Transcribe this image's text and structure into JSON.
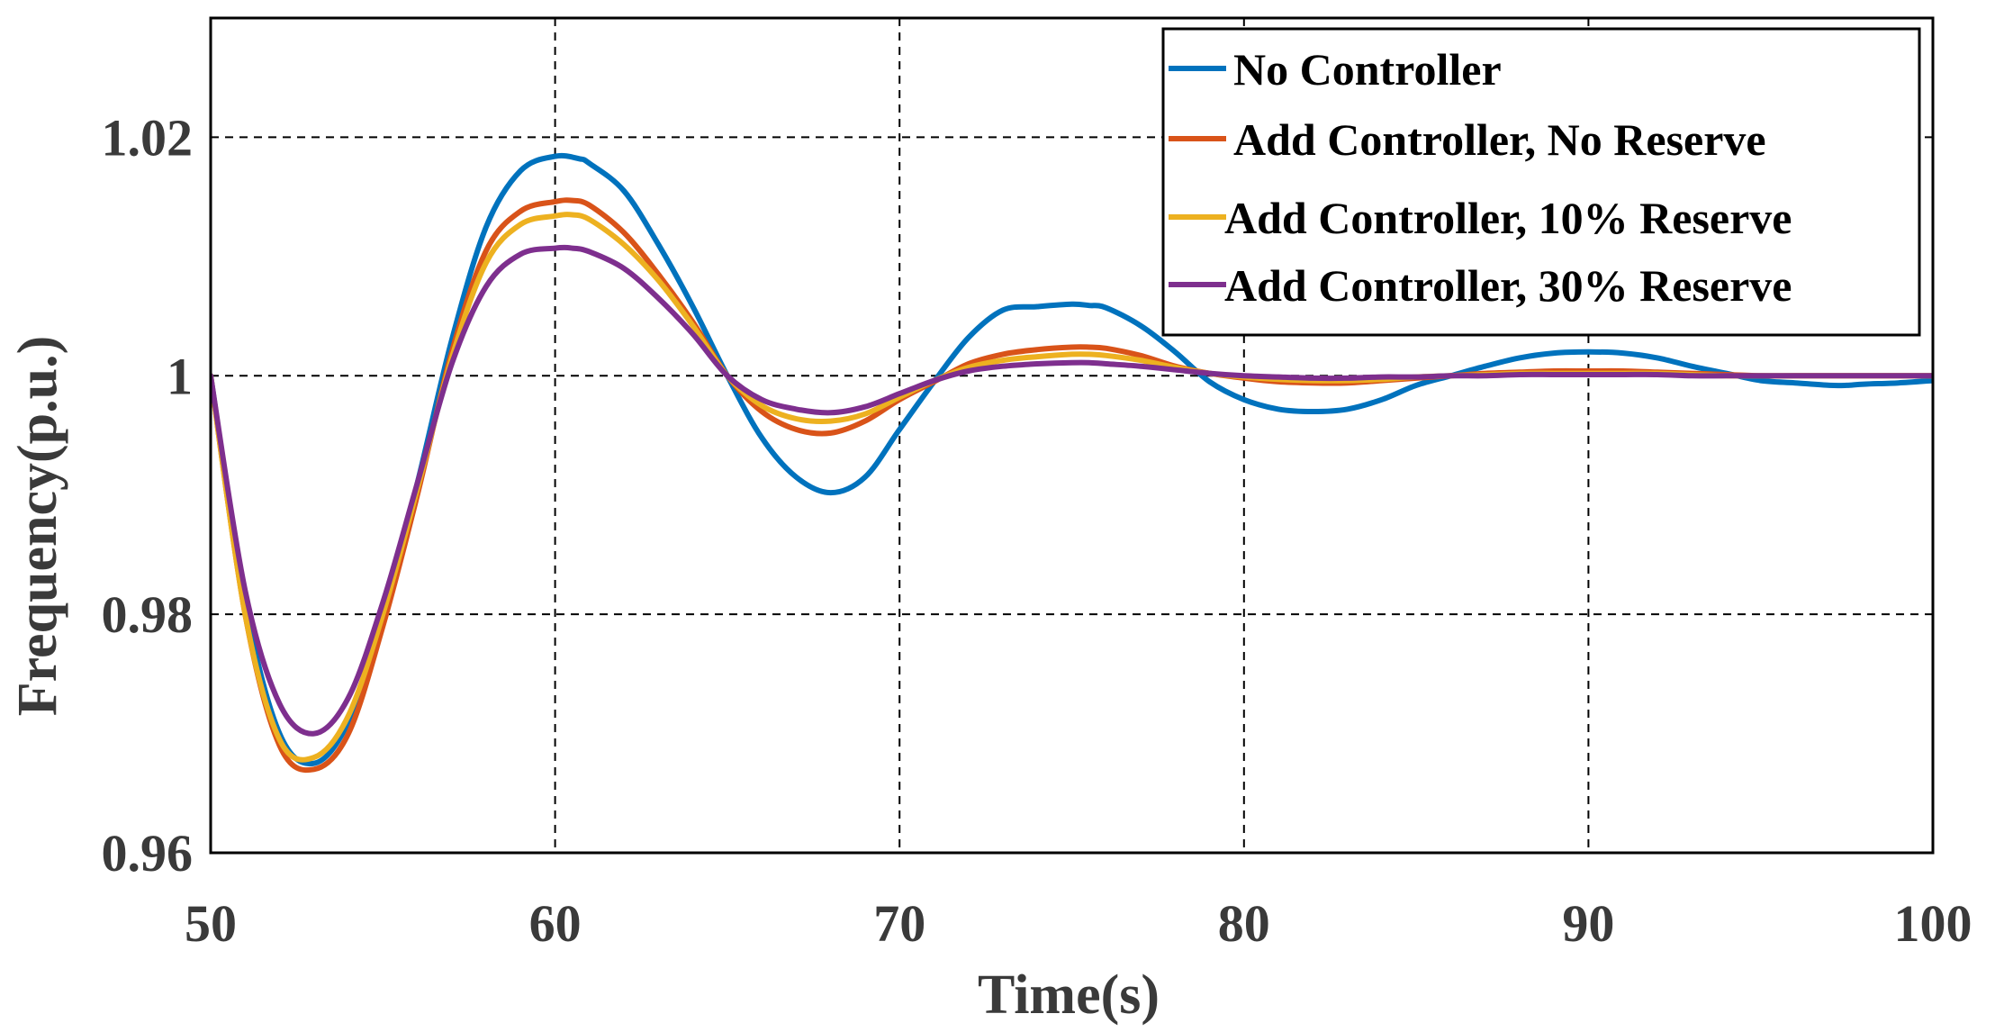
{
  "chart_data": {
    "type": "line",
    "title": "",
    "xlabel": "Time(s)",
    "ylabel": "Frequency(p.u.)",
    "xlim": [
      50,
      100
    ],
    "ylim": [
      0.96,
      1.03
    ],
    "xticks": [
      50,
      60,
      70,
      80,
      90,
      100
    ],
    "xtick_labels": [
      "50",
      "60",
      "70",
      "80",
      "90",
      "100"
    ],
    "yticks": [
      0.96,
      0.98,
      1.0,
      1.02
    ],
    "ytick_labels": [
      "0.96",
      "0.98",
      "1",
      "1.02"
    ],
    "grid": true,
    "legend_position": "top-right",
    "series": [
      {
        "name": "No Controller",
        "color": "#0072BD",
        "x": [
          50,
          51,
          52,
          53,
          54,
          55,
          56,
          57,
          58,
          59,
          60,
          60.7,
          61,
          62,
          63,
          64,
          65,
          66,
          67,
          68,
          69,
          70,
          71,
          72,
          73,
          74,
          75,
          75.5,
          76,
          77,
          78,
          79,
          80,
          81,
          82,
          83,
          84,
          85,
          86,
          87,
          88,
          89,
          90,
          91,
          92,
          93,
          94,
          95,
          96,
          97,
          97.5,
          98,
          99,
          100
        ],
        "y": [
          1.0,
          0.981,
          0.97,
          0.9675,
          0.971,
          0.98,
          0.991,
          1.003,
          1.0125,
          1.0172,
          1.0184,
          1.0182,
          1.0178,
          1.0155,
          1.011,
          1.0058,
          1.0,
          0.9948,
          0.9915,
          0.9902,
          0.9915,
          0.9955,
          0.9995,
          1.0032,
          1.0055,
          1.0058,
          1.006,
          1.0059,
          1.0057,
          1.0042,
          1.002,
          0.9995,
          0.998,
          0.9972,
          0.997,
          0.9972,
          0.998,
          0.9992,
          1.0,
          1.0008,
          1.0015,
          1.0019,
          1.002,
          1.0019,
          1.0015,
          1.0008,
          1.0002,
          0.9996,
          0.9994,
          0.9992,
          0.9992,
          0.9993,
          0.9994,
          0.9996
        ]
      },
      {
        "name": "Add Controller, No Reserve",
        "color": "#D95319",
        "x": [
          50,
          51,
          52,
          53,
          54,
          55,
          56,
          57,
          58,
          59,
          60,
          60.5,
          61,
          62,
          63,
          64,
          65,
          66,
          67,
          68,
          69,
          70,
          71,
          72,
          73,
          74,
          75,
          75.5,
          76,
          77,
          78,
          79,
          80,
          81,
          82,
          83,
          84,
          85,
          86,
          87,
          88,
          89,
          90,
          91,
          92,
          93,
          94,
          95,
          96,
          97,
          98,
          99,
          100
        ],
        "y": [
          1.0,
          0.98,
          0.969,
          0.967,
          0.97,
          0.979,
          0.99,
          1.002,
          1.0105,
          1.0138,
          1.0146,
          1.0147,
          1.0143,
          1.012,
          1.0085,
          1.0045,
          1.0,
          0.997,
          0.9955,
          0.9952,
          0.9962,
          0.998,
          0.9995,
          1.001,
          1.0018,
          1.0022,
          1.0024,
          1.0024,
          1.0023,
          1.0017,
          1.0008,
          1.0002,
          0.9998,
          0.9995,
          0.9994,
          0.9994,
          0.9996,
          0.9998,
          1.0,
          1.0002,
          1.0003,
          1.0004,
          1.0004,
          1.0004,
          1.0003,
          1.0002,
          1.0001,
          1.0,
          1.0,
          1.0,
          1.0,
          1.0,
          1.0
        ]
      },
      {
        "name": "Add Controller, 10% Reserve",
        "color": "#EDB120",
        "x": [
          50,
          51,
          52,
          53,
          54,
          55,
          56,
          57,
          58,
          59,
          60,
          60.5,
          61,
          62,
          63,
          64,
          65,
          66,
          67,
          68,
          69,
          70,
          71,
          72,
          73,
          74,
          75,
          75.5,
          76,
          77,
          78,
          79,
          80,
          81,
          82,
          83,
          84,
          85,
          86,
          87,
          88,
          89,
          90,
          91,
          92,
          93,
          94,
          95,
          96,
          97,
          98,
          99,
          100
        ],
        "y": [
          1.0,
          0.98,
          0.9695,
          0.968,
          0.9715,
          0.98,
          0.9905,
          1.0015,
          1.0095,
          1.0127,
          1.0134,
          1.0135,
          1.0131,
          1.011,
          1.008,
          1.0042,
          1.0,
          0.9975,
          0.9964,
          0.9962,
          0.9968,
          0.9982,
          0.9996,
          1.0007,
          1.0013,
          1.0016,
          1.0018,
          1.0018,
          1.0017,
          1.0013,
          1.0007,
          1.0002,
          0.9999,
          0.9997,
          0.9996,
          0.9996,
          0.9997,
          0.9999,
          1.0,
          1.0001,
          1.0002,
          1.0002,
          1.0002,
          1.0002,
          1.0002,
          1.0001,
          1.0,
          1.0,
          1.0,
          1.0,
          1.0,
          1.0,
          1.0
        ]
      },
      {
        "name": "Add Controller, 30% Reserve",
        "color": "#7E2F8E",
        "x": [
          50,
          51,
          52,
          53,
          54,
          55,
          56,
          57,
          58,
          59,
          60,
          60.5,
          61,
          62,
          63,
          64,
          65,
          66,
          67,
          68,
          69,
          70,
          71,
          72,
          73,
          74,
          75,
          75.5,
          76,
          77,
          78,
          79,
          80,
          81,
          82,
          83,
          84,
          85,
          86,
          87,
          88,
          89,
          90,
          91,
          92,
          93,
          94,
          95,
          96,
          97,
          98,
          99,
          100
        ],
        "y": [
          1.0,
          0.982,
          0.9725,
          0.97,
          0.973,
          0.981,
          0.991,
          1.001,
          1.0075,
          1.0102,
          1.0107,
          1.0107,
          1.0104,
          1.009,
          1.0065,
          1.0035,
          1.0,
          0.998,
          0.9972,
          0.9969,
          0.9974,
          0.9985,
          0.9996,
          1.0004,
          1.0008,
          1.001,
          1.0011,
          1.0011,
          1.001,
          1.0008,
          1.0005,
          1.0002,
          1.0,
          0.9999,
          0.9998,
          0.9998,
          0.9999,
          0.9999,
          1.0,
          1.0,
          1.0001,
          1.0001,
          1.0001,
          1.0001,
          1.0001,
          1.0,
          1.0,
          1.0,
          1.0,
          1.0,
          1.0,
          1.0,
          1.0
        ]
      }
    ]
  }
}
